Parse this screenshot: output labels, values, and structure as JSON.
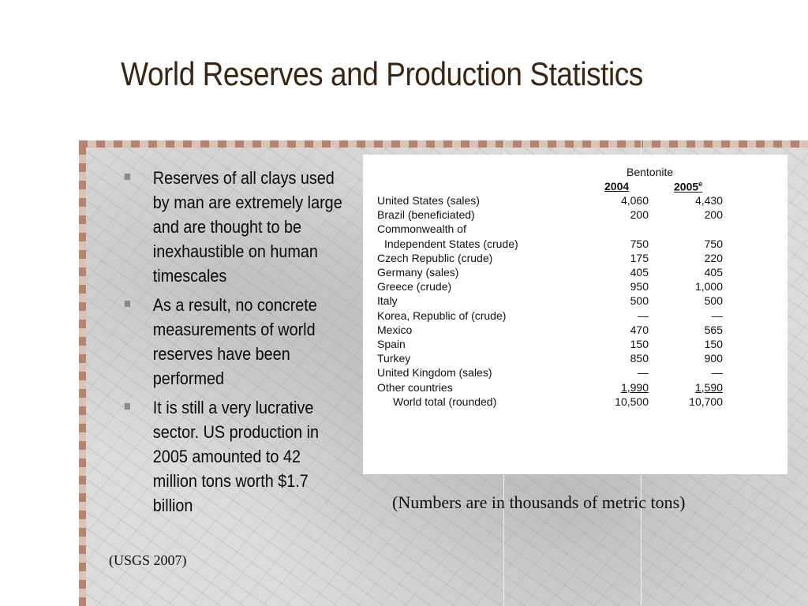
{
  "title": "World Reserves and Production Statistics",
  "bullets": [
    "Reserves of all clays used by man are extremely large and are thought to be inexhaustible on human timescales",
    "As a result, no concrete measurements of world reserves have been performed",
    "It is still a very lucrative sector.  US production in 2005 amounted to 42 million tons worth $1.7 billion"
  ],
  "table": {
    "heading": "Bentonite",
    "col1": "2004",
    "col2": "2005",
    "col2_sup": "e",
    "rows": [
      {
        "name": "United States (sales)",
        "v2004": "4,060",
        "v2005": "4,430"
      },
      {
        "name": "Brazil (beneficiated)",
        "v2004": "200",
        "v2005": "200"
      },
      {
        "name": "Commonwealth of",
        "v2004": "",
        "v2005": ""
      },
      {
        "name": "  Independent States (crude)",
        "v2004": "750",
        "v2005": "750"
      },
      {
        "name": "Czech Republic (crude)",
        "v2004": "175",
        "v2005": "220"
      },
      {
        "name": "Germany (sales)",
        "v2004": "405",
        "v2005": "405"
      },
      {
        "name": "Greece (crude)",
        "v2004": "950",
        "v2005": "1,000"
      },
      {
        "name": "Italy",
        "v2004": "500",
        "v2005": "500"
      },
      {
        "name": "Korea, Republic of (crude)",
        "v2004": "—",
        "v2005": "—"
      },
      {
        "name": "Mexico",
        "v2004": "470",
        "v2005": "565"
      },
      {
        "name": "Spain",
        "v2004": "150",
        "v2005": "150"
      },
      {
        "name": "Turkey",
        "v2004": "850",
        "v2005": "900"
      },
      {
        "name": "United Kingdom (sales)",
        "v2004": "—",
        "v2005": "—"
      },
      {
        "name": "Other countries",
        "v2004": "1,990",
        "v2005": "1,590"
      },
      {
        "name": "World total (rounded)",
        "v2004": "10,500",
        "v2005": "10,700"
      }
    ]
  },
  "note": "(Numbers are in thousands of metric tons)",
  "source": "(USGS 2007)"
}
